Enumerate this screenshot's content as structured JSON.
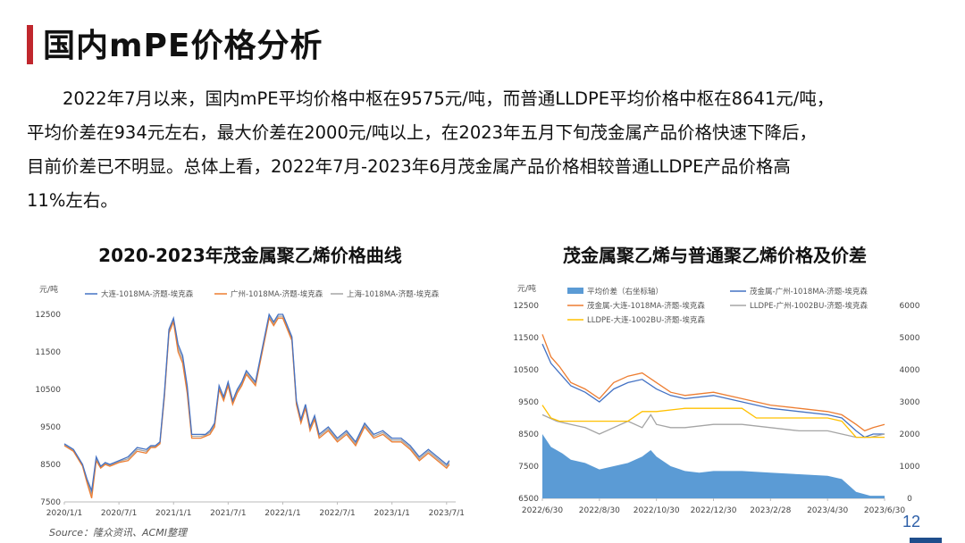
{
  "header": {
    "title": "国内mPE价格分析"
  },
  "paragraph": {
    "line1": "2022年7月以来，国内mPE平均价格中枢在9575元/吨，而普通LLDPE平均价格中枢在8641元/吨，",
    "line2": "平均价差在934元左右，最大价差在2000元/吨以上，在2023年五月下旬茂金属产品价格快速下降后，",
    "line3": "目前价差已不明显。总体上看，2022年7月-2023年6月茂金属产品价格相较普通LLDPE产品价格高",
    "line4": "11%左右。"
  },
  "footer": {
    "source": "Source：隆众资讯、ACMI整理",
    "page": "12"
  },
  "colors": {
    "accent": "#c0272d",
    "blue": "#4472c4",
    "orange": "#ed7d31",
    "gray": "#a5a5a5",
    "yellow": "#ffc000",
    "spread": "#5b9bd5"
  },
  "chart_data": [
    {
      "type": "line",
      "title": "2020-2023年茂金属聚乙烯价格曲线",
      "yunit": "元/吨",
      "ylim": [
        7500,
        12500
      ],
      "yticks": [
        "7500",
        "8500",
        "9500",
        "10500",
        "11500",
        "12500"
      ],
      "xlim": [
        0,
        43
      ],
      "xtick_positions": [
        0,
        6,
        12,
        18,
        24,
        30,
        36,
        42
      ],
      "xticks": [
        "2020/1/1",
        "2020/7/1",
        "2021/1/1",
        "2021/7/1",
        "2022/1/1",
        "2022/7/1",
        "2023/1/1",
        "2023/7/1"
      ],
      "series": [
        {
          "name": "大连-1018MA-济题-埃克森",
          "color": "#4472c4",
          "x": [
            0,
            1,
            2,
            2.5,
            3,
            3.5,
            4,
            4.5,
            5,
            6,
            7,
            8,
            9,
            9.5,
            10,
            10.5,
            11,
            11.5,
            12,
            12.5,
            13,
            13.5,
            14,
            15,
            15.5,
            16,
            16.5,
            17,
            17.5,
            18,
            18.5,
            19,
            19.5,
            20,
            21,
            22,
            22.5,
            23,
            23.5,
            24,
            25,
            25.5,
            26,
            26.5,
            27,
            27.5,
            28,
            29,
            30,
            31,
            32,
            33,
            34,
            35,
            36,
            37,
            38,
            39,
            40,
            41,
            42,
            42.3
          ],
          "y": [
            9050,
            8900,
            8500,
            8100,
            7800,
            8700,
            8450,
            8550,
            8500,
            8600,
            8700,
            8950,
            8900,
            9000,
            9000,
            9100,
            10400,
            12100,
            12400,
            11700,
            11400,
            10600,
            9300,
            9300,
            9300,
            9400,
            9600,
            10600,
            10300,
            10700,
            10200,
            10500,
            10700,
            11000,
            10700,
            11900,
            12500,
            12300,
            12500,
            12500,
            11900,
            10200,
            9700,
            10100,
            9500,
            9800,
            9300,
            9500,
            9200,
            9400,
            9100,
            9600,
            9300,
            9400,
            9200,
            9200,
            9000,
            8700,
            8900,
            8700,
            8500,
            8600
          ]
        },
        {
          "name": "广州-1018MA-济题-埃克森",
          "color": "#ed7d31",
          "x": [
            0,
            1,
            2,
            2.5,
            3,
            3.5,
            4,
            4.5,
            5,
            6,
            7,
            8,
            9,
            9.5,
            10,
            10.5,
            11,
            11.5,
            12,
            12.5,
            13,
            13.5,
            14,
            15,
            15.5,
            16,
            16.5,
            17,
            17.5,
            18,
            18.5,
            19,
            19.5,
            20,
            21,
            22,
            22.5,
            23,
            23.5,
            24,
            25,
            25.5,
            26,
            26.5,
            27,
            27.5,
            28,
            29,
            30,
            31,
            32,
            33,
            34,
            35,
            36,
            37,
            38,
            39,
            40,
            41,
            42,
            42.3
          ],
          "y": [
            9000,
            8850,
            8450,
            8000,
            7600,
            8600,
            8400,
            8500,
            8450,
            8550,
            8600,
            8850,
            8800,
            8950,
            8950,
            9050,
            10300,
            12000,
            12300,
            11500,
            11200,
            10400,
            9200,
            9200,
            9250,
            9300,
            9500,
            10500,
            10200,
            10600,
            10100,
            10400,
            10600,
            10900,
            10600,
            11800,
            12400,
            12200,
            12400,
            12400,
            11800,
            10100,
            9600,
            10000,
            9400,
            9700,
            9200,
            9400,
            9100,
            9300,
            9000,
            9500,
            9200,
            9300,
            9100,
            9100,
            8900,
            8600,
            8800,
            8600,
            8400,
            8500
          ]
        },
        {
          "name": "上海-1018MA-济题-埃克森",
          "color": "#a5a5a5",
          "x": [
            0,
            1,
            2,
            2.5,
            3,
            3.5,
            4,
            4.5,
            5,
            6,
            7,
            8,
            9,
            9.5,
            10,
            10.5,
            11,
            11.5,
            12,
            12.5,
            13,
            13.5,
            14,
            15,
            15.5,
            16,
            16.5,
            17,
            17.5,
            18,
            18.5,
            19,
            19.5,
            20,
            21,
            22,
            22.5,
            23,
            23.5,
            24,
            25,
            25.5,
            26,
            26.5,
            27,
            27.5,
            28,
            29,
            30,
            31,
            32,
            33,
            34,
            35,
            36,
            37,
            38,
            39,
            40,
            41,
            42,
            42.3
          ],
          "y": [
            9020,
            8880,
            8480,
            8050,
            7700,
            8650,
            8420,
            8520,
            8480,
            8580,
            8650,
            8900,
            8850,
            8980,
            8980,
            9080,
            10350,
            12050,
            12350,
            11600,
            11300,
            10500,
            9250,
            9250,
            9280,
            9350,
            9550,
            10550,
            10250,
            10650,
            10150,
            10450,
            10650,
            10950,
            10650,
            11850,
            12450,
            12250,
            12450,
            12450,
            11850,
            10150,
            9650,
            10050,
            9450,
            9750,
            9250,
            9450,
            9150,
            9350,
            9050,
            9550,
            9250,
            9350,
            9150,
            9150,
            8950,
            8650,
            8850,
            8650,
            8450,
            8550
          ]
        }
      ]
    },
    {
      "type": "line",
      "title": "茂金属聚乙烯与普通聚乙烯价格及价差",
      "yunit": "元/吨",
      "ylim": [
        6500,
        12500
      ],
      "yticks": [
        "6500",
        "7500",
        "8500",
        "9500",
        "10500",
        "11500",
        "12500"
      ],
      "y2lim": [
        0,
        6000
      ],
      "y2ticks": [
        "0",
        "1000",
        "2000",
        "3000",
        "4000",
        "5000",
        "6000"
      ],
      "xlim": [
        0,
        12
      ],
      "xtick_positions": [
        0,
        2,
        4,
        6,
        8,
        10,
        12
      ],
      "xticks": [
        "2022/6/30",
        "2022/8/30",
        "2022/10/30",
        "2022/12/30",
        "2023/2/28",
        "2023/4/30",
        "2023/6/30"
      ],
      "series": [
        {
          "name": "平均价差（右坐标轴）",
          "kind": "area",
          "axis": "right",
          "color": "#5b9bd5",
          "x": [
            0,
            0.3,
            0.7,
            1,
            1.5,
            2,
            2.5,
            3,
            3.5,
            3.8,
            4,
            4.5,
            5,
            5.5,
            6,
            7,
            8,
            9,
            10,
            10.5,
            11,
            11.5,
            12
          ],
          "y": [
            2000,
            1600,
            1400,
            1200,
            1100,
            900,
            1000,
            1100,
            1300,
            1500,
            1300,
            1000,
            850,
            800,
            850,
            850,
            800,
            750,
            700,
            600,
            200,
            80,
            80
          ]
        },
        {
          "name": "茂金属-广州-1018MA-济题-埃克森",
          "color": "#4472c4",
          "x": [
            0,
            0.3,
            0.6,
            1,
            1.5,
            2,
            2.5,
            3,
            3.5,
            4,
            4.5,
            5,
            6,
            7,
            8,
            9,
            10,
            10.5,
            11,
            11.3,
            11.6,
            12
          ],
          "y": [
            11300,
            10700,
            10400,
            10000,
            9800,
            9500,
            9900,
            10100,
            10200,
            9900,
            9700,
            9600,
            9700,
            9500,
            9300,
            9200,
            9100,
            9000,
            8600,
            8400,
            8500,
            8500
          ]
        },
        {
          "name": "茂金属-大连-1018MA-济题-埃克森",
          "color": "#ed7d31",
          "x": [
            0,
            0.3,
            0.6,
            1,
            1.5,
            2,
            2.5,
            3,
            3.5,
            4,
            4.5,
            5,
            6,
            7,
            8,
            9,
            10,
            10.5,
            11,
            11.3,
            11.6,
            12
          ],
          "y": [
            11600,
            10900,
            10600,
            10100,
            9900,
            9600,
            10100,
            10300,
            10400,
            10100,
            9800,
            9700,
            9800,
            9600,
            9400,
            9300,
            9200,
            9100,
            8800,
            8600,
            8700,
            8800
          ]
        },
        {
          "name": "LLDPE-广州-1002BU-济题-埃克森",
          "color": "#a5a5a5",
          "x": [
            0,
            0.5,
            1,
            1.5,
            2,
            2.5,
            3,
            3.5,
            3.8,
            4,
            4.5,
            5,
            6,
            7,
            8,
            9,
            10,
            10.5,
            11,
            11.5,
            12
          ],
          "y": [
            9100,
            8900,
            8800,
            8700,
            8500,
            8700,
            8900,
            8700,
            9100,
            8800,
            8700,
            8700,
            8800,
            8800,
            8700,
            8600,
            8600,
            8500,
            8400,
            8400,
            8500
          ]
        },
        {
          "name": "LLDPE-大连-1002BU-济题-埃克森",
          "color": "#ffc000",
          "x": [
            0,
            0.3,
            0.6,
            1,
            2,
            3,
            3.5,
            4,
            5,
            6,
            7,
            7.5,
            8,
            9,
            10,
            10.5,
            11,
            11.5,
            12
          ],
          "y": [
            9400,
            9000,
            8900,
            8900,
            8900,
            8900,
            9200,
            9200,
            9300,
            9300,
            9300,
            9000,
            9000,
            9000,
            9000,
            8900,
            8400,
            8400,
            8400
          ]
        }
      ]
    }
  ]
}
